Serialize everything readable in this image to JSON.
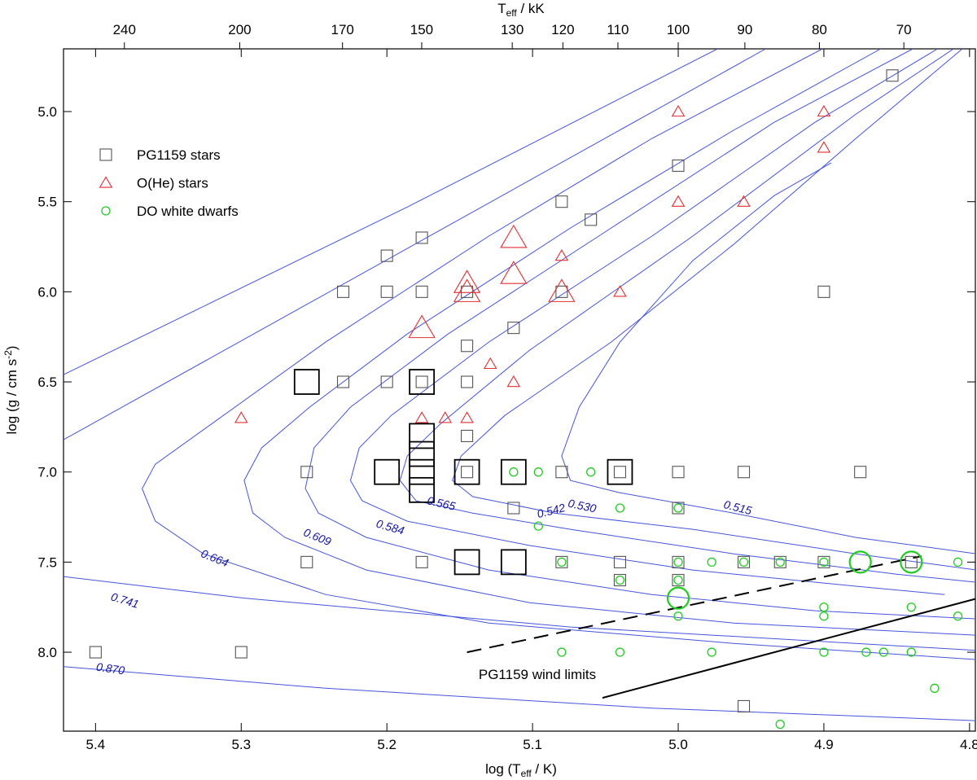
{
  "chart_data": {
    "type": "scatter",
    "x_label": [
      "log (T",
      "eff",
      " / K)"
    ],
    "y_label": [
      "log (g / cm s",
      "-2",
      ")"
    ],
    "x2_label": [
      "T",
      "eff",
      " / kK"
    ],
    "xlim": [
      5.422,
      4.796
    ],
    "ylim": [
      4.652,
      8.438
    ],
    "xticks": [
      5.4,
      5.3,
      5.2,
      5.1,
      {
        "value": 5.0,
        "label": "5.0"
      },
      4.9,
      4.8
    ],
    "yticks": [
      {
        "value": 5.0,
        "label": "5.0"
      },
      5.5,
      {
        "value": 6.0,
        "label": "6.0"
      },
      6.5,
      {
        "value": 7.0,
        "label": "7.0"
      },
      7.5,
      {
        "value": 8.0,
        "label": "8.0"
      }
    ],
    "x2ticks": [
      240,
      200,
      170,
      150,
      130,
      120,
      110,
      100,
      90,
      80,
      70
    ],
    "legend": "upper left",
    "series": [
      {
        "name": "PG1159 stars",
        "marker": "square",
        "color": "#555555",
        "text_color": "#000000",
        "x": [
          4.853,
          5.0,
          5.08,
          5.06,
          5.2,
          5.176,
          5.23,
          5.2,
          5.176,
          5.145,
          5.08,
          4.9,
          5.113,
          5.145,
          5.23,
          5.2,
          5.176,
          5.145,
          5.145,
          5.255,
          5.145,
          5.08,
          5.04,
          5.0,
          4.955,
          4.875,
          5.113,
          5.0,
          5.255,
          5.176,
          5.08,
          5.04,
          5.04,
          5.0,
          5.0,
          4.955,
          4.93,
          4.9,
          4.84,
          5.4,
          5.3,
          4.955,
          5.255,
          5.176,
          5.176,
          5.176,
          5.176,
          5.176,
          5.2,
          5.145,
          5.113,
          5.04,
          5.145,
          5.113
        ],
        "values": [
          4.8,
          5.3,
          5.5,
          5.6,
          5.8,
          5.7,
          6.0,
          6.0,
          6.0,
          6.0,
          6.0,
          6.0,
          6.2,
          6.3,
          6.5,
          6.5,
          6.5,
          6.5,
          6.8,
          7.0,
          7.0,
          7.0,
          7.0,
          7.0,
          7.0,
          7.0,
          7.2,
          7.2,
          7.5,
          7.5,
          7.5,
          7.5,
          7.6,
          7.5,
          7.6,
          7.5,
          7.5,
          7.5,
          7.5,
          8.0,
          8.0,
          8.3,
          6.5,
          6.5,
          6.8,
          6.9,
          7.0,
          7.1,
          7.0,
          7.0,
          7.0,
          7.0,
          7.5,
          7.5
        ],
        "sizes": [
          1,
          1,
          1,
          1,
          1,
          1,
          1,
          1,
          1,
          1,
          1,
          1,
          1,
          1,
          1,
          1,
          1,
          1,
          1,
          1,
          1,
          1,
          1,
          1,
          1,
          1,
          1,
          1,
          1,
          1,
          1,
          1,
          1,
          1,
          1,
          1,
          1,
          1,
          1,
          1,
          1,
          1,
          2,
          2,
          2,
          2,
          2,
          2,
          2,
          2,
          2,
          2,
          2,
          2
        ]
      },
      {
        "name": "O(He) stars",
        "marker": "triangle",
        "color": "#e03030",
        "text_color": "#e03030",
        "x": [
          5.0,
          4.9,
          4.9,
          5.0,
          4.955,
          5.08,
          5.04,
          5.129,
          5.113,
          5.3,
          5.176,
          5.16,
          5.145,
          5.113,
          5.113,
          5.145,
          5.145,
          5.08,
          5.176
        ],
        "values": [
          5.0,
          5.0,
          5.2,
          5.5,
          5.5,
          5.8,
          6.0,
          6.4,
          6.5,
          6.7,
          6.7,
          6.7,
          6.7,
          5.7,
          5.9,
          5.95,
          6.0,
          6.0,
          6.2
        ],
        "sizes": [
          1,
          1,
          1,
          1,
          1,
          1,
          1,
          1,
          1,
          1,
          1,
          1,
          1,
          2,
          2,
          2,
          2,
          2,
          2
        ]
      },
      {
        "name": "DO white dwarfs",
        "marker": "circle",
        "color": "#22cc22",
        "text_color": "#22cc22",
        "x": [
          5.113,
          5.096,
          5.06,
          5.04,
          5.0,
          5.096,
          5.08,
          5.0,
          5.0,
          4.977,
          4.955,
          4.93,
          4.9,
          4.808,
          5.04,
          5.0,
          4.9,
          4.9,
          4.84,
          4.808,
          5.08,
          5.04,
          4.977,
          4.9,
          4.871,
          4.859,
          4.84,
          4.824,
          4.93,
          5.0,
          4.875,
          4.84
        ],
        "values": [
          7.0,
          7.0,
          7.0,
          7.2,
          7.2,
          7.3,
          7.5,
          7.5,
          7.6,
          7.5,
          7.5,
          7.5,
          7.5,
          7.5,
          7.6,
          7.8,
          7.75,
          7.8,
          7.75,
          7.8,
          8.0,
          8.0,
          8.0,
          8.0,
          8.0,
          8.0,
          8.0,
          8.2,
          8.4,
          7.7,
          7.5,
          7.5
        ],
        "sizes": [
          1,
          1,
          1,
          1,
          1,
          1,
          1,
          1,
          1,
          1,
          1,
          1,
          1,
          1,
          1,
          1,
          1,
          1,
          1,
          1,
          1,
          1,
          1,
          1,
          1,
          1,
          1,
          1,
          1,
          2,
          2,
          2
        ]
      }
    ],
    "tracks": [
      {
        "name": "0.515",
        "x": [
          4.895,
          4.934,
          4.99,
          5.04,
          5.068,
          5.08,
          5.074,
          5.04,
          4.962,
          4.878,
          4.795
        ],
        "values": [
          5.285,
          5.466,
          5.827,
          6.279,
          6.64,
          6.911,
          7.047,
          7.115,
          7.228,
          7.363,
          7.454
        ]
      },
      {
        "name": "0.530",
        "x": [
          4.805,
          4.878,
          4.962,
          5.046,
          5.119,
          5.149,
          5.155,
          5.141,
          5.085,
          4.99,
          4.878,
          4.795
        ],
        "values": [
          4.652,
          5.149,
          5.737,
          6.279,
          6.686,
          6.911,
          7.047,
          7.137,
          7.228,
          7.318,
          7.454,
          7.544
        ]
      },
      {
        "name": "0.542",
        "x": [
          4.811,
          4.878,
          4.99,
          5.102,
          5.163,
          5.186,
          5.191,
          5.18,
          5.141,
          5.074,
          4.962,
          4.85,
          4.795
        ],
        "values": [
          4.652,
          5.014,
          5.691,
          6.324,
          6.731,
          6.911,
          7.047,
          7.16,
          7.228,
          7.318,
          7.454,
          7.567,
          7.612
        ]
      },
      {
        "name": "0.565",
        "x": [
          4.822,
          4.906,
          5.018,
          5.13,
          5.197,
          5.219,
          5.225,
          5.217,
          5.186,
          5.102,
          4.99,
          4.878,
          4.817
        ],
        "values": [
          4.652,
          5.059,
          5.691,
          6.279,
          6.686,
          6.866,
          7.047,
          7.16,
          7.273,
          7.408,
          7.544,
          7.634,
          7.68
        ]
      },
      {
        "name": "0.584",
        "x": [
          4.839,
          4.934,
          5.046,
          5.158,
          5.225,
          5.25,
          5.256,
          5.247,
          5.214,
          5.13,
          5.018,
          4.906,
          4.795
        ],
        "values": [
          4.652,
          5.059,
          5.646,
          6.234,
          6.64,
          6.866,
          7.092,
          7.228,
          7.363,
          7.544,
          7.68,
          7.77,
          7.815
        ]
      },
      {
        "name": "0.609",
        "x": [
          4.861,
          4.962,
          5.074,
          5.186,
          5.253,
          5.286,
          5.298,
          5.292,
          5.27,
          5.214,
          5.102,
          4.962,
          4.795
        ],
        "values": [
          4.652,
          5.104,
          5.646,
          6.234,
          6.64,
          6.866,
          7.047,
          7.228,
          7.363,
          7.544,
          7.725,
          7.838,
          7.906
        ]
      },
      {
        "name": "0.664",
        "x": [
          4.901,
          5.018,
          5.13,
          5.242,
          5.32,
          5.359,
          5.368,
          5.359,
          5.326,
          5.242,
          5.13,
          4.962,
          4.795
        ],
        "values": [
          4.652,
          5.149,
          5.691,
          6.279,
          6.731,
          6.957,
          7.092,
          7.273,
          7.454,
          7.68,
          7.838,
          7.951,
          8.041
        ]
      },
      {
        "name": "0.741",
        "x": [
          5.422,
          5.186,
          4.94,
          null,
          5.422,
          5.298,
          5.074,
          4.795
        ],
        "values": [
          6.821,
          5.76,
          4.652,
          null,
          7.58,
          7.7,
          7.86,
          7.99
        ]
      },
      {
        "name": "0.870",
        "x": [
          5.422,
          5.186,
          4.973,
          null,
          5.422,
          5.242,
          5.018,
          4.795
        ],
        "values": [
          6.46,
          5.53,
          4.652,
          null,
          8.08,
          8.2,
          8.31,
          8.38
        ]
      }
    ],
    "track_color": "#4455dd",
    "wind_limits": {
      "label": "PG1159 wind limits",
      "color": "#000000",
      "lines": [
        {
          "dashed": true,
          "x": [
            5.145,
            4.833
          ],
          "values": [
            8.0,
            7.467
          ]
        },
        {
          "dashed": false,
          "x": [
            5.052,
            4.795
          ],
          "values": [
            8.253,
            7.702
          ]
        }
      ]
    }
  }
}
